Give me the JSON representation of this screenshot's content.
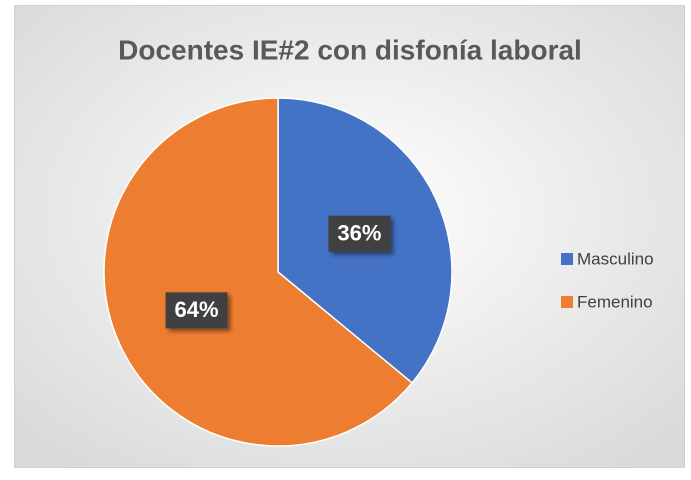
{
  "chart_data": {
    "type": "pie",
    "title": "Docentes IE#2 con disfonía laboral",
    "categories": [
      "Masculino",
      "Femenino"
    ],
    "values": [
      36,
      64
    ],
    "value_labels": [
      "36%",
      "64%"
    ],
    "colors": [
      "#4472c4",
      "#ed7d31"
    ],
    "legend": "right"
  }
}
